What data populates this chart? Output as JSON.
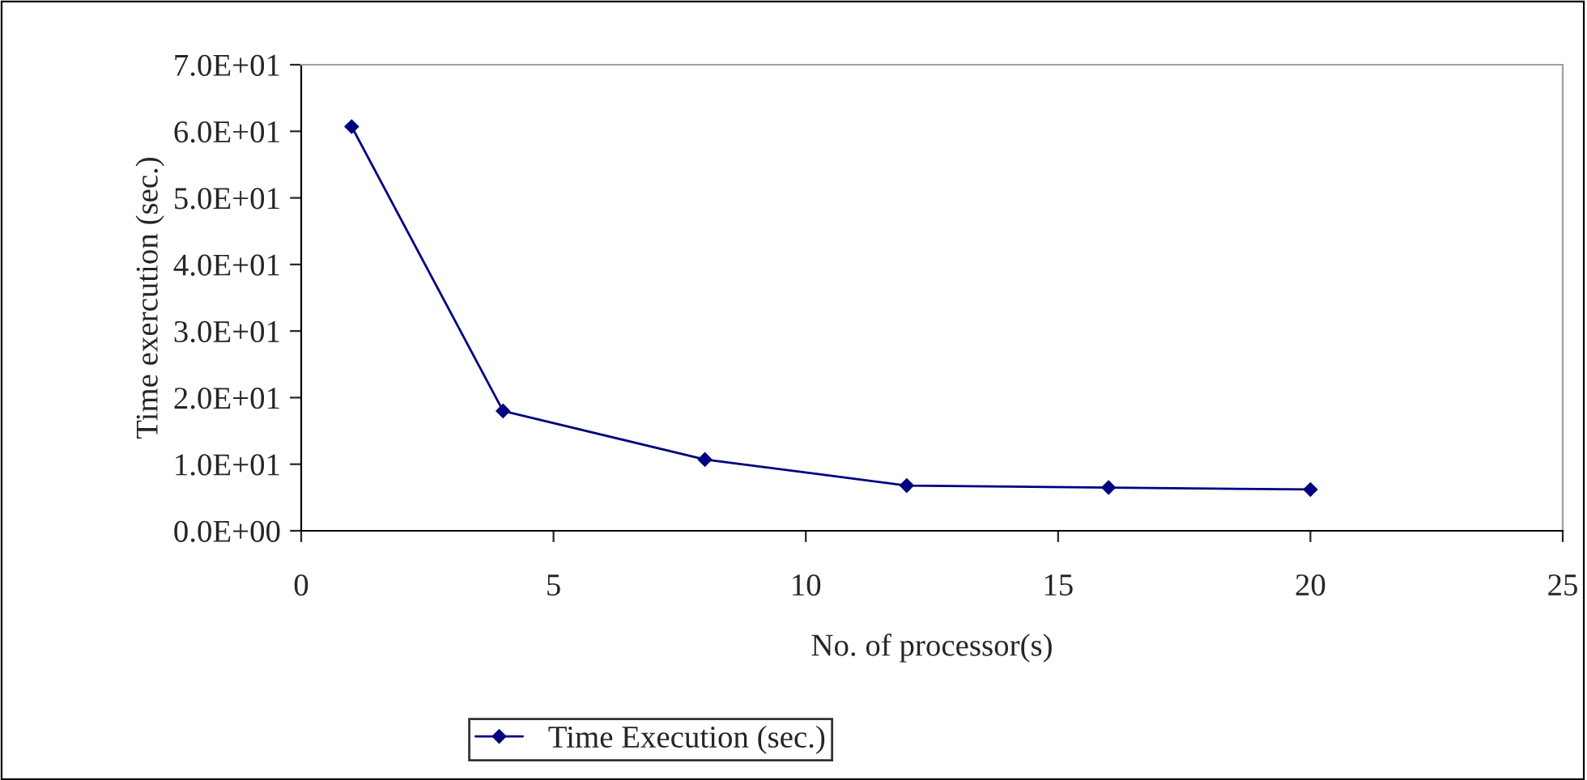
{
  "chart_data": {
    "type": "line",
    "xlabel": "No. of processor(s)",
    "ylabel": "Time exercution (sec.)",
    "x": [
      1,
      4,
      8,
      12,
      16,
      20
    ],
    "series": [
      {
        "name": "Time Execution (sec.)",
        "color": "#000080",
        "values": [
          60.7,
          18.0,
          10.7,
          6.8,
          6.5,
          6.2
        ]
      }
    ],
    "xlim": [
      0,
      25
    ],
    "xticks": [
      0,
      5,
      10,
      15,
      20,
      25
    ],
    "ylim": [
      0,
      70
    ],
    "yticks": [
      {
        "value": 0,
        "label": "0.0E+00"
      },
      {
        "value": 10,
        "label": "1.0E+01"
      },
      {
        "value": 20,
        "label": "2.0E+01"
      },
      {
        "value": 30,
        "label": "3.0E+01"
      },
      {
        "value": 40,
        "label": "4.0E+01"
      },
      {
        "value": 50,
        "label": "5.0E+01"
      },
      {
        "value": 60,
        "label": "6.0E+01"
      },
      {
        "value": 70,
        "label": "7.0E+01"
      }
    ],
    "legend": "bottom",
    "marker": "diamond",
    "line_style": "solid",
    "grid": false
  }
}
